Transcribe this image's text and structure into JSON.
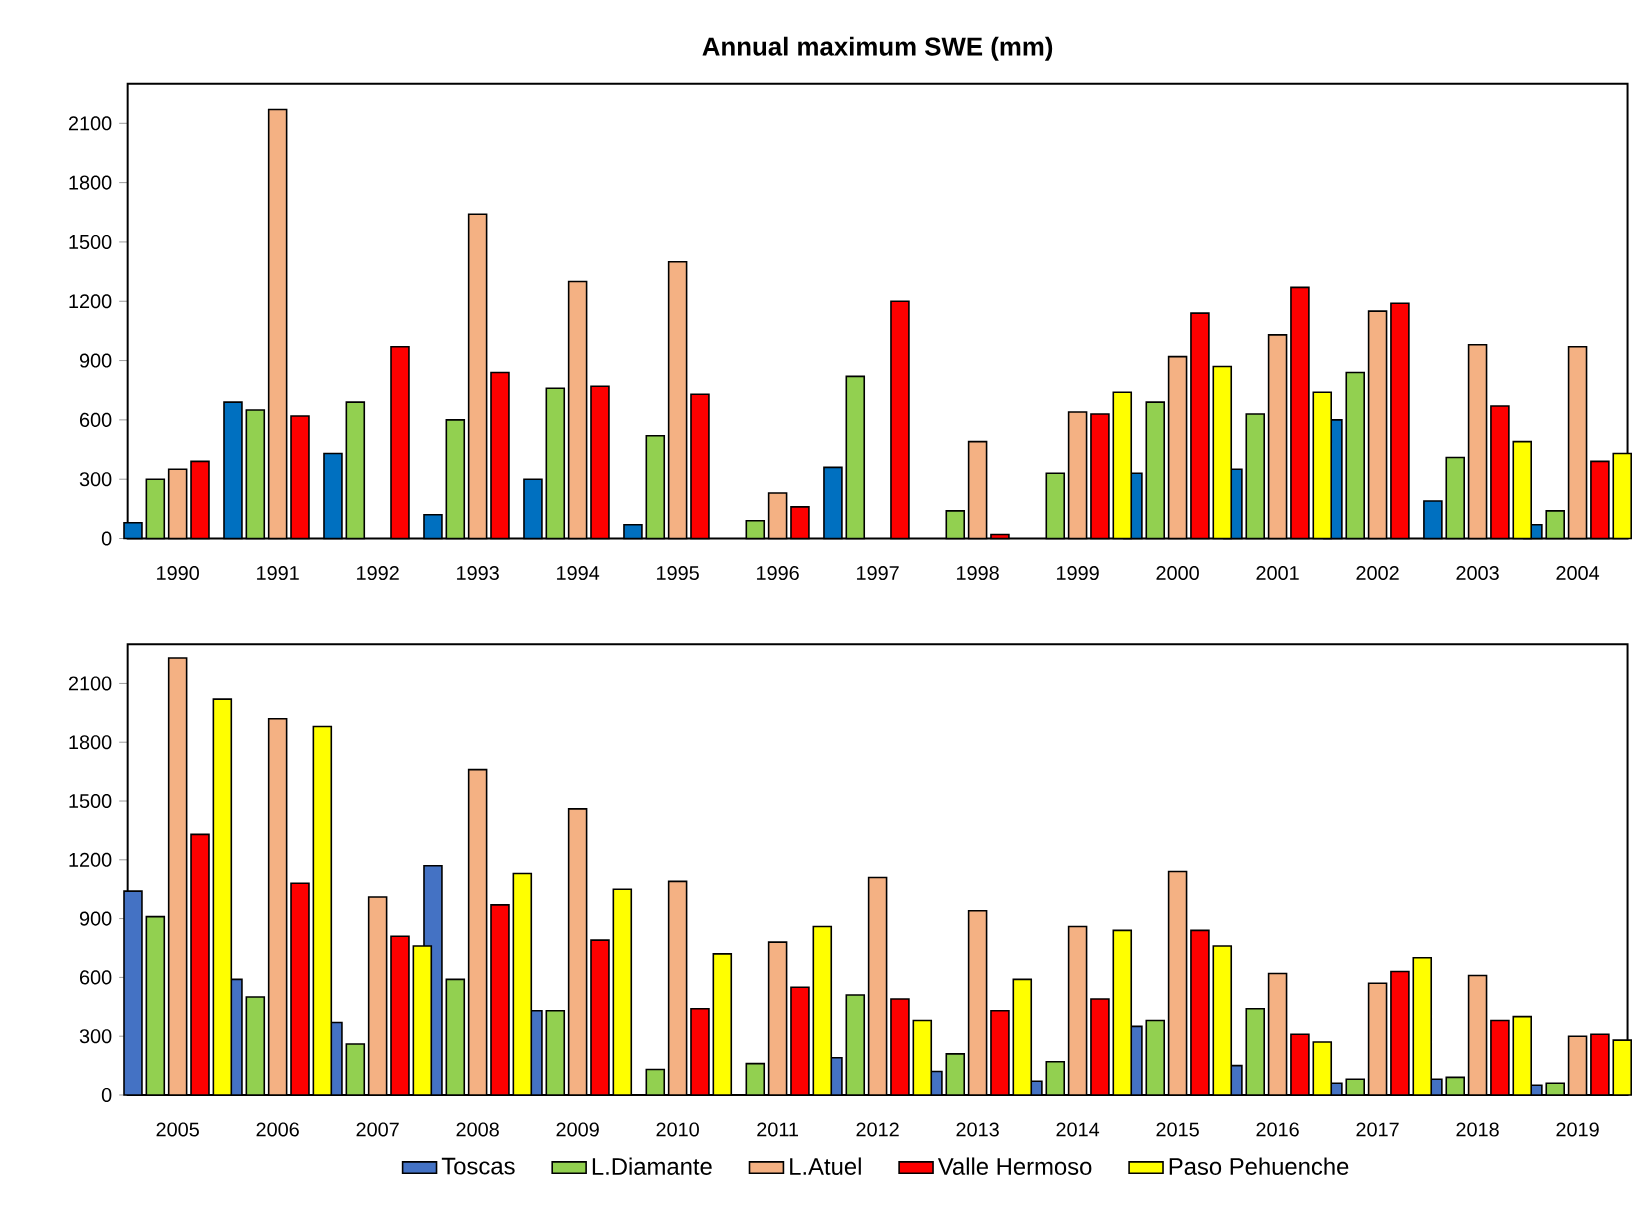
{
  "chart_data": [
    {
      "type": "bar",
      "title": "Annual maximum SWE (mm)",
      "categories": [
        "1990",
        "1991",
        "1992",
        "1993",
        "1994",
        "1995",
        "1996",
        "1997",
        "1998",
        "1999",
        "2000",
        "2001",
        "2002",
        "2003",
        "2004"
      ],
      "ylim": [
        0,
        2300
      ],
      "yticks": [
        0,
        300,
        600,
        900,
        1200,
        1500,
        1800,
        2100
      ],
      "series": [
        {
          "color": "#0070c0",
          "values": [
            80,
            690,
            430,
            120,
            300,
            70,
            null,
            360,
            null,
            null,
            330,
            350,
            600,
            190,
            70
          ]
        },
        {
          "color": "#92d050",
          "values": [
            300,
            650,
            690,
            600,
            760,
            520,
            90,
            820,
            140,
            330,
            690,
            630,
            840,
            410,
            140
          ]
        },
        {
          "color": "#f4b183",
          "values": [
            350,
            2170,
            null,
            1640,
            1300,
            1400,
            230,
            null,
            490,
            640,
            920,
            1030,
            1150,
            980,
            970
          ]
        },
        {
          "color": "#ff0000",
          "values": [
            390,
            620,
            970,
            840,
            770,
            730,
            160,
            1200,
            20,
            630,
            1140,
            1270,
            1190,
            670,
            390
          ]
        },
        {
          "color": "#ffff00",
          "values": [
            null,
            null,
            null,
            null,
            null,
            null,
            null,
            null,
            null,
            740,
            870,
            740,
            null,
            490,
            430
          ]
        }
      ]
    },
    {
      "type": "bar",
      "categories": [
        "2005",
        "2006",
        "2007",
        "2008",
        "2009",
        "2010",
        "2011",
        "2012",
        "2013",
        "2014",
        "2015",
        "2016",
        "2017",
        "2018",
        "2019"
      ],
      "ylim": [
        0,
        2300
      ],
      "yticks": [
        0,
        300,
        600,
        900,
        1200,
        1500,
        1800,
        2100
      ],
      "legend": "bottom",
      "series": [
        {
          "name": "Toscas",
          "color": "#4472c4",
          "values": [
            1040,
            590,
            370,
            1170,
            430,
            null,
            null,
            190,
            120,
            70,
            350,
            150,
            60,
            80,
            50
          ]
        },
        {
          "name": "L.Diamante",
          "color": "#92d050",
          "values": [
            910,
            500,
            260,
            590,
            430,
            130,
            160,
            510,
            210,
            170,
            380,
            440,
            80,
            90,
            60
          ]
        },
        {
          "name": "L.Atuel",
          "color": "#f4b183",
          "values": [
            2230,
            1920,
            1010,
            1660,
            1460,
            1090,
            780,
            1110,
            940,
            860,
            1140,
            620,
            570,
            610,
            300
          ]
        },
        {
          "name": "Valle Hermoso",
          "color": "#ff0000",
          "values": [
            1330,
            1080,
            810,
            970,
            790,
            440,
            550,
            490,
            430,
            490,
            840,
            310,
            630,
            380,
            310
          ]
        },
        {
          "name": "Paso Pehuenche",
          "color": "#ffff00",
          "values": [
            2020,
            1880,
            760,
            1130,
            1050,
            720,
            860,
            380,
            590,
            840,
            760,
            270,
            700,
            400,
            280
          ]
        }
      ]
    }
  ]
}
